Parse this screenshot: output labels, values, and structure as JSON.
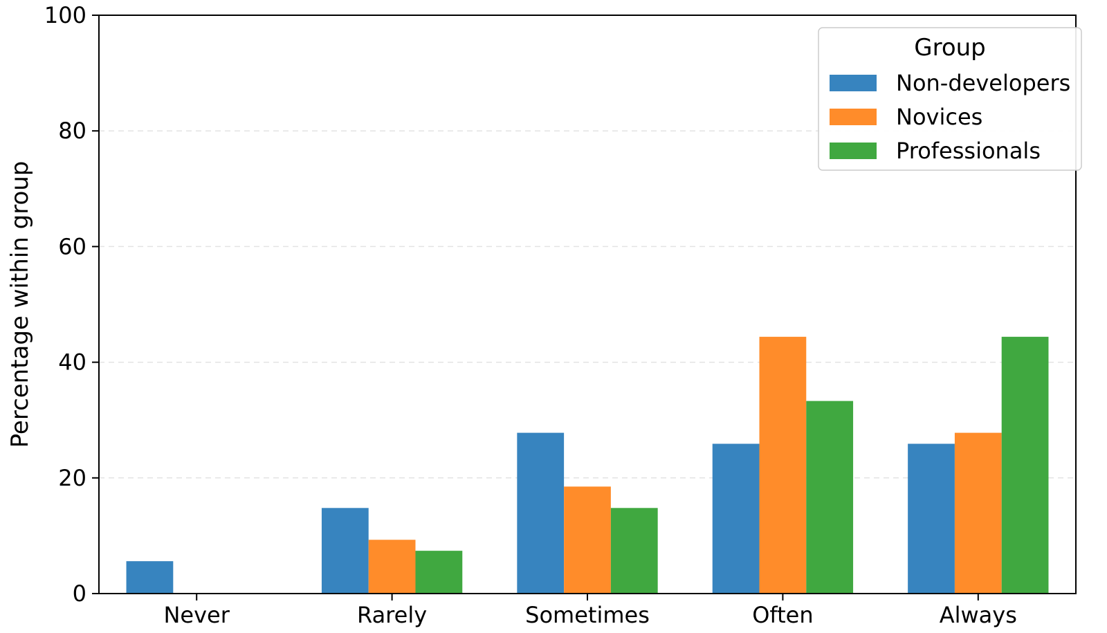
{
  "chart_data": {
    "type": "bar",
    "categories": [
      "Never",
      "Rarely",
      "Sometimes",
      "Often",
      "Always"
    ],
    "series": [
      {
        "name": "Non-developers",
        "color": "#3784bf",
        "values": [
          5.6,
          14.8,
          27.8,
          25.9,
          25.9
        ]
      },
      {
        "name": "Novices",
        "color": "#ff8c2a",
        "values": [
          0,
          9.3,
          18.5,
          44.4,
          27.8
        ]
      },
      {
        "name": "Professionals",
        "color": "#40a840",
        "values": [
          0,
          7.4,
          14.8,
          33.3,
          44.4
        ]
      }
    ],
    "title": "",
    "xlabel": "",
    "ylabel": "Percentage within group",
    "ylim": [
      0,
      100
    ],
    "yticks": [
      0,
      20,
      40,
      60,
      80,
      100
    ],
    "grid": "y-dashed",
    "legend": {
      "title": "Group",
      "placement": "top-right"
    }
  }
}
